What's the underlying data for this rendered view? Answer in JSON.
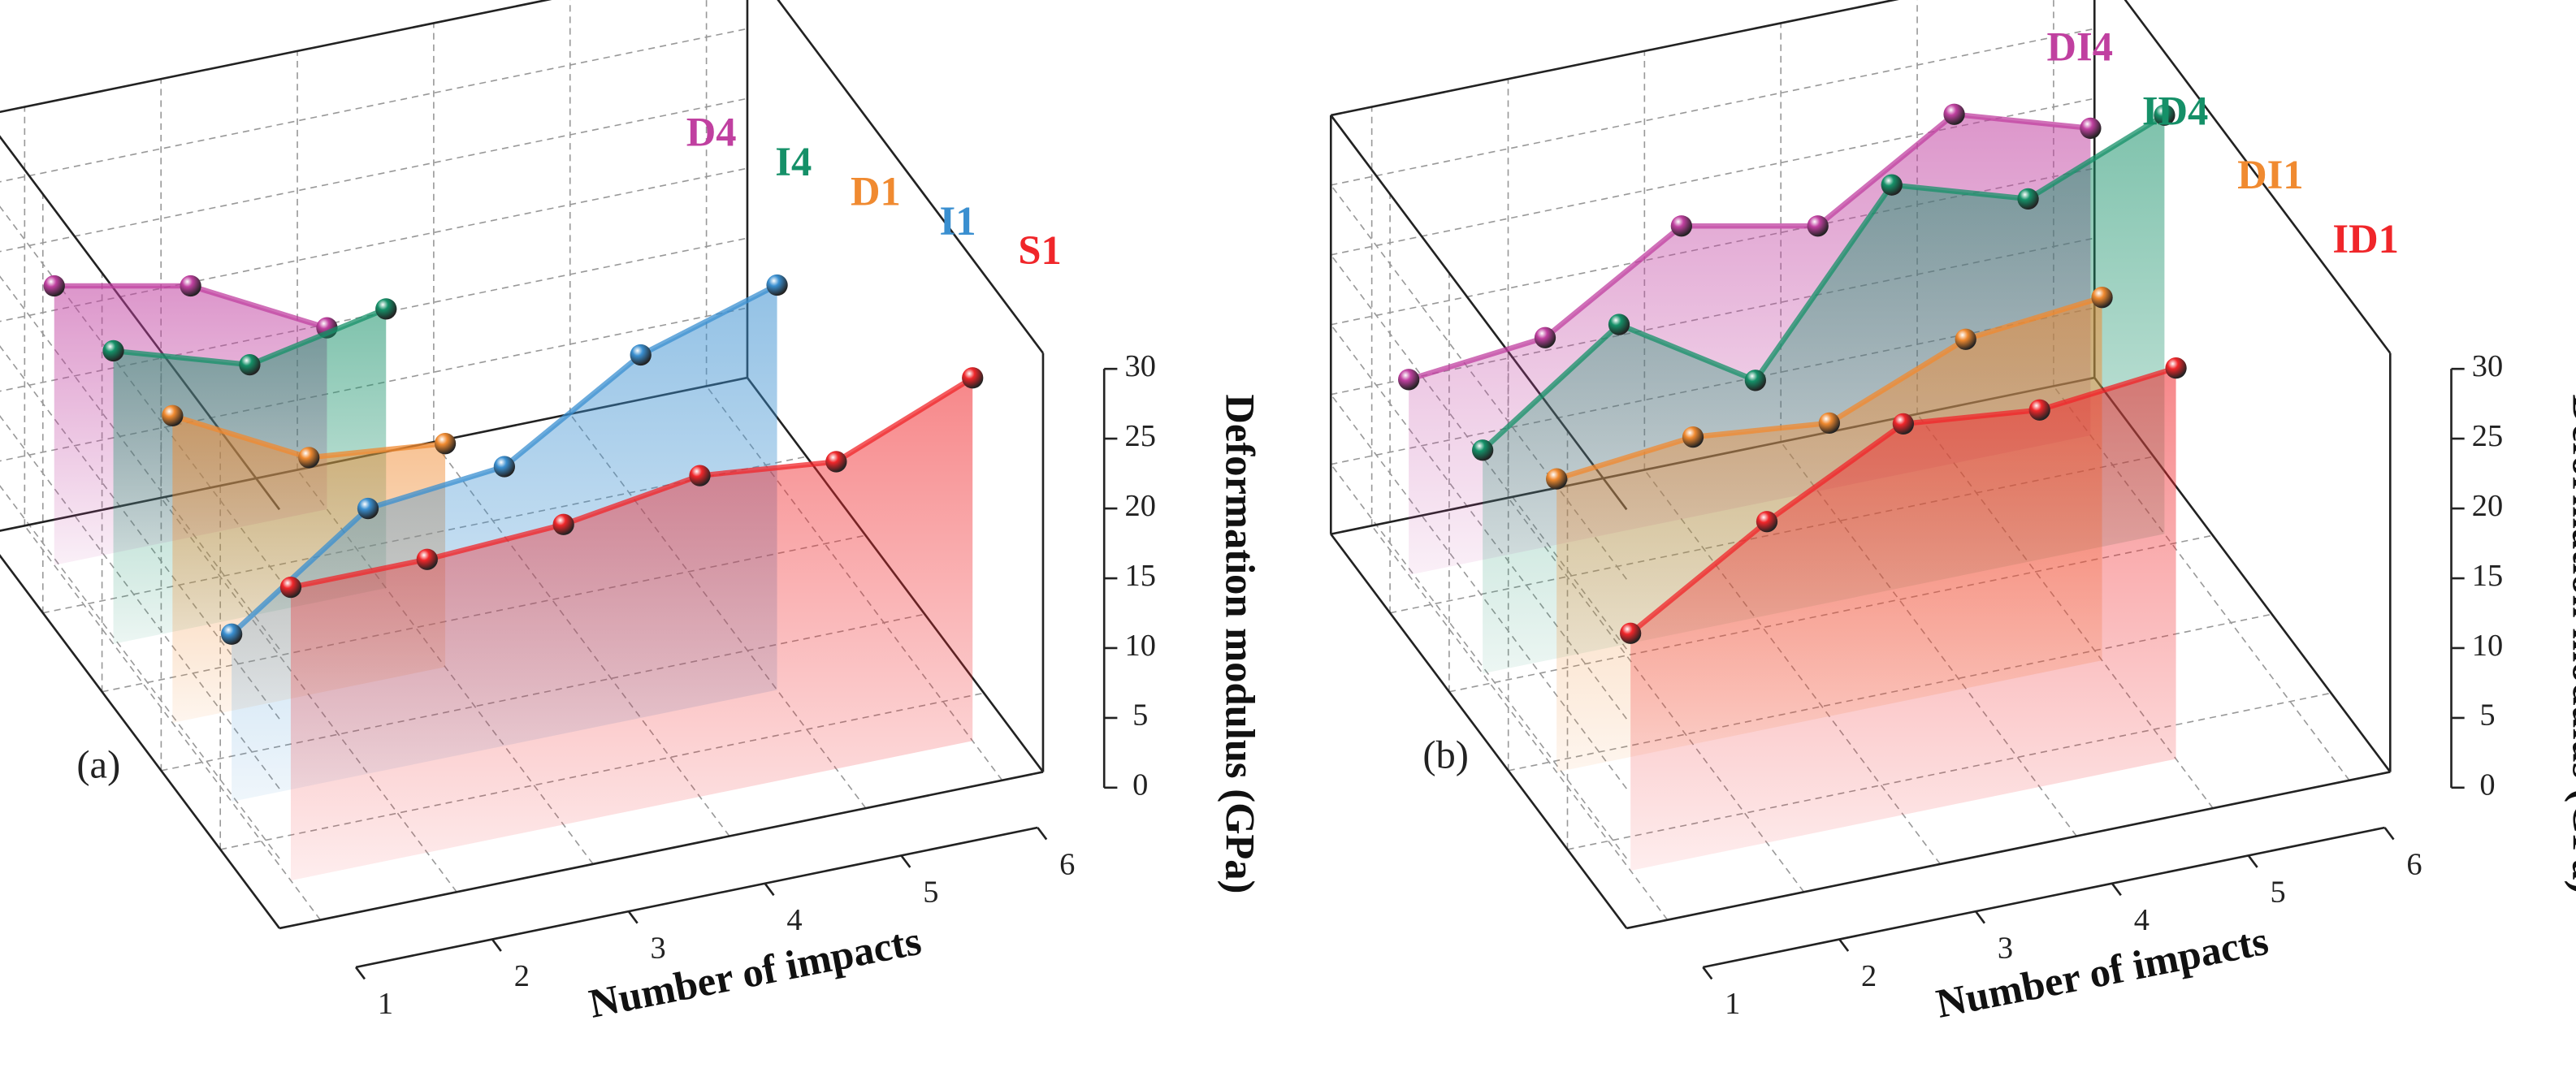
{
  "chart_data": [
    {
      "type": "line3d",
      "panel_label": "(a)",
      "x_label": "Number of impacts",
      "y_label": "Deformation modulus (GPa)",
      "x": [
        1,
        2,
        3,
        4,
        5,
        6
      ],
      "xlim": [
        1,
        6
      ],
      "xticks": [
        1,
        2,
        3,
        4,
        5,
        6
      ],
      "ylim": [
        0,
        30
      ],
      "yticks": [
        0,
        5,
        10,
        15,
        20,
        25,
        30
      ],
      "grid": true,
      "series": [
        {
          "name": "S1",
          "color": "#f0262a",
          "values": [
            21,
            21,
            21.5,
            23,
            22,
            26
          ]
        },
        {
          "name": "I1",
          "color": "#3a8fd0",
          "values": [
            12,
            19,
            20,
            26,
            29,
            null
          ]
        },
        {
          "name": "D1",
          "color": "#f08a30",
          "values": [
            22,
            17,
            16,
            null,
            null,
            null
          ]
        },
        {
          "name": "I4",
          "color": "#159068",
          "values": [
            21,
            18,
            20,
            null,
            null,
            null
          ]
        },
        {
          "name": "D4",
          "color": "#c040a0",
          "values": [
            20,
            18,
            13,
            null,
            null,
            null
          ]
        }
      ]
    },
    {
      "type": "line3d",
      "panel_label": "(b)",
      "x_label": "Number of impacts",
      "y_label": "Deformation modulus (GPa)",
      "x": [
        1,
        2,
        3,
        4,
        5,
        6
      ],
      "xlim": [
        1,
        6
      ],
      "xticks": [
        1,
        2,
        3,
        4,
        5,
        6
      ],
      "ylim": [
        0,
        30
      ],
      "yticks": [
        0,
        5,
        10,
        15,
        20,
        25,
        30
      ],
      "grid": true,
      "series": [
        {
          "name": "ID1",
          "color": "#f0262a",
          "values": [
            17,
            23,
            28,
            27,
            28,
            null
          ]
        },
        {
          "name": "DI1",
          "color": "#f08a30",
          "values": [
            21,
            22,
            21,
            25,
            26,
            null
          ]
        },
        {
          "name": "ID4",
          "color": "#159068",
          "values": [
            16,
            23,
            17,
            29,
            26,
            30
          ]
        },
        {
          "name": "DI4",
          "color": "#c040a0",
          "values": [
            14,
            15,
            21,
            19,
            25,
            22
          ]
        }
      ]
    }
  ]
}
